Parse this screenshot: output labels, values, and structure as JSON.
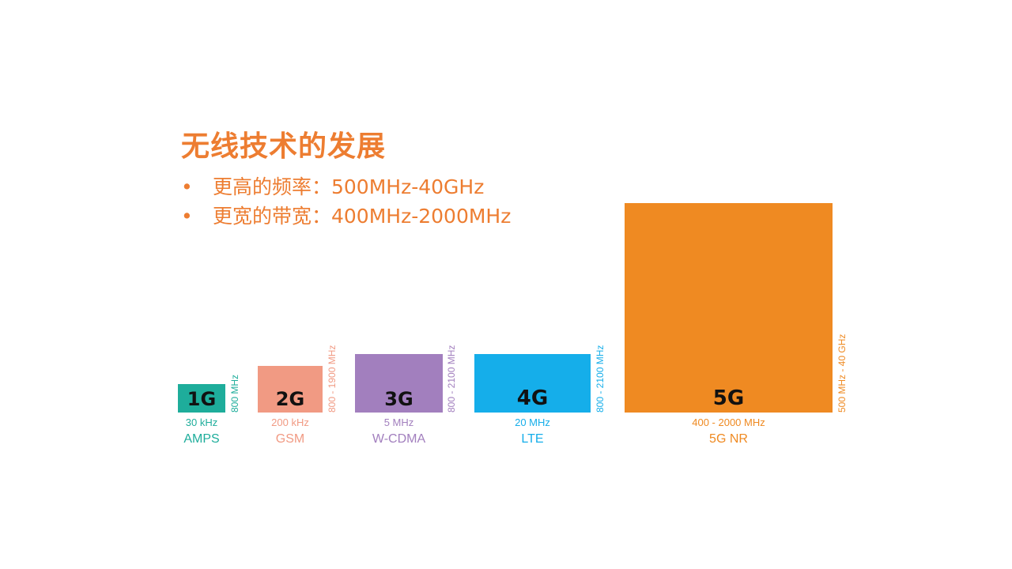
{
  "title": "无线技术的发展",
  "bullets": [
    "更高的频率：500MHz-40GHz",
    "更宽的带宽：400MHz-2000MHz"
  ],
  "bullet_symbol": "•",
  "generations": [
    {
      "label": "1G",
      "bandwidth": "30 kHz",
      "standard": "AMPS",
      "frequency": "800 MHz",
      "color": "#1EAD9B"
    },
    {
      "label": "2G",
      "bandwidth": "200 kHz",
      "standard": "GSM",
      "frequency": "800 - 1900 MHz",
      "color": "#F19A83"
    },
    {
      "label": "3G",
      "bandwidth": "5 MHz",
      "standard": "W-CDMA",
      "frequency": "800 - 2100 MHz",
      "color": "#A27FBE"
    },
    {
      "label": "4G",
      "bandwidth": "20 MHz",
      "standard": "LTE",
      "frequency": "800 - 2100 MHz",
      "color": "#15AEEA"
    },
    {
      "label": "5G",
      "bandwidth": "400 - 2000 MHz",
      "standard": "5G NR",
      "frequency": "500 MHz - 40 GHz",
      "color": "#EF8A22"
    }
  ],
  "colors": {
    "title": "#ED7D31",
    "bullet_text": "#ED7D31"
  }
}
